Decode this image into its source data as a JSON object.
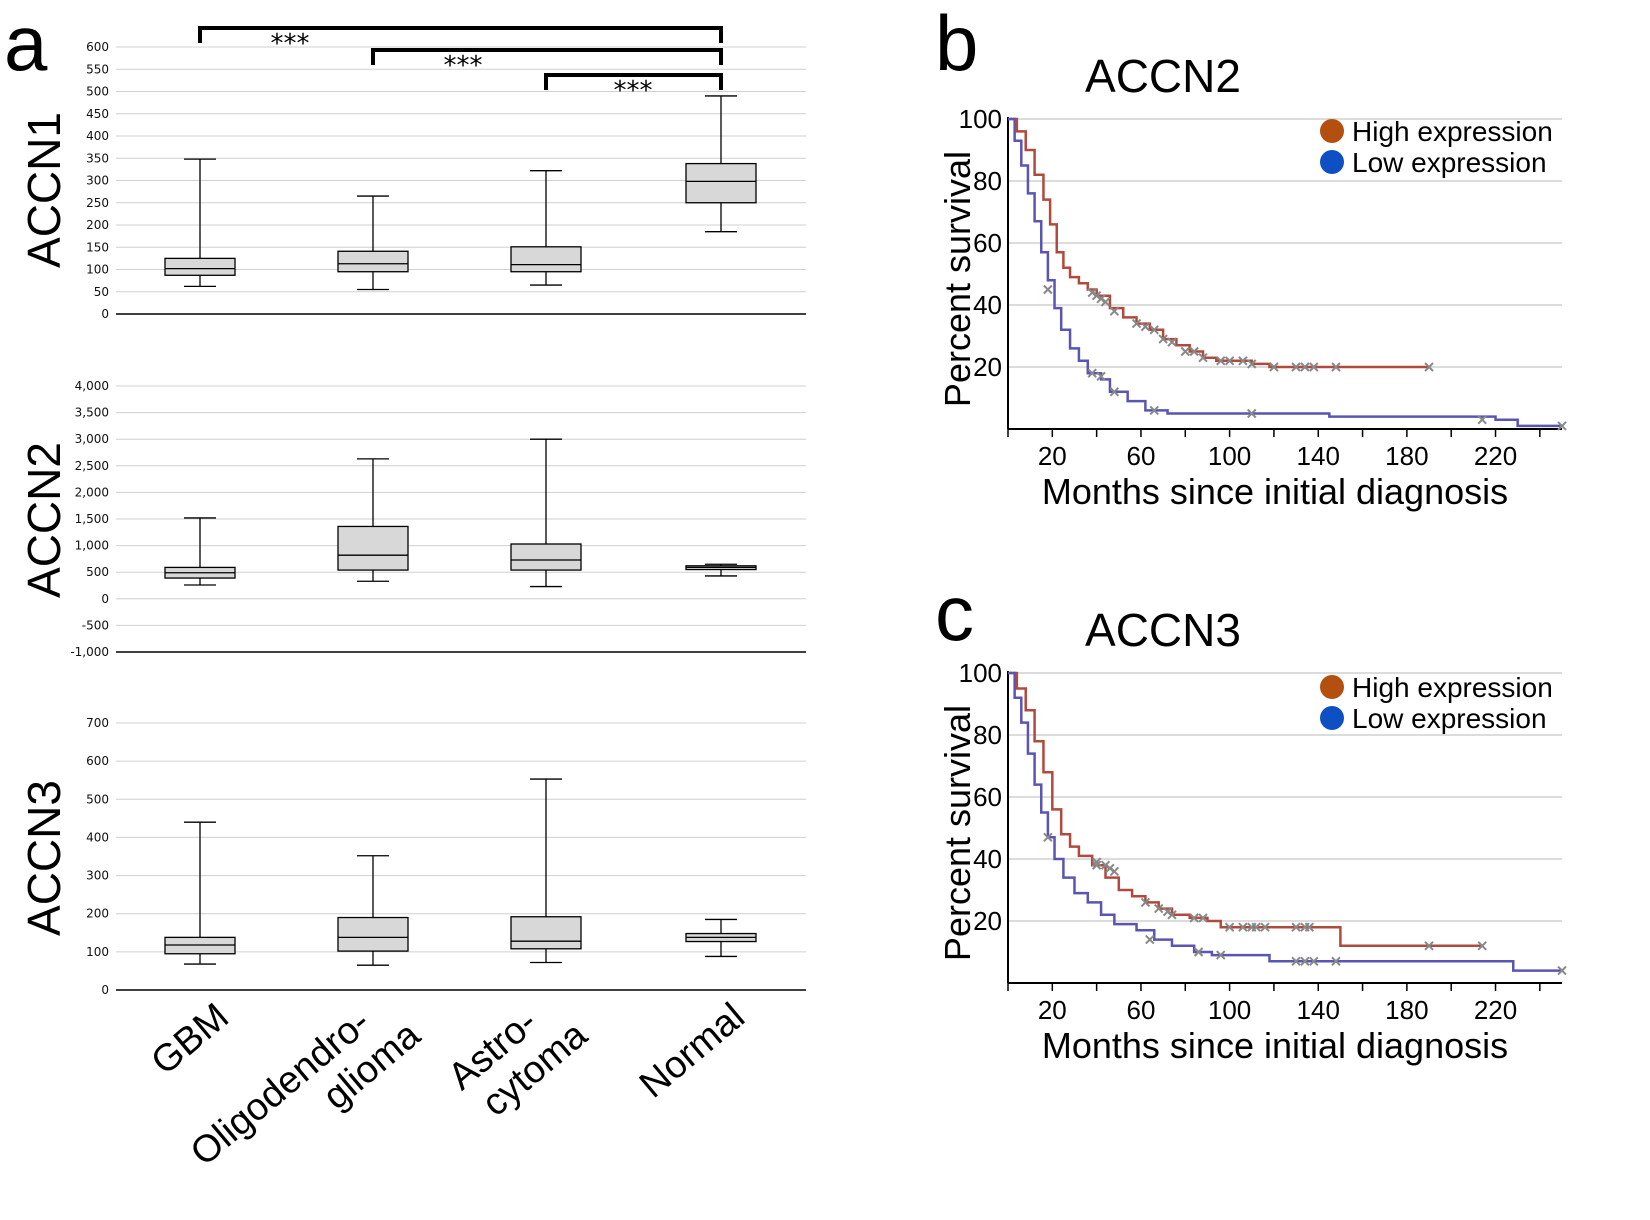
{
  "panels": {
    "a": "a",
    "b": "b",
    "c": "c"
  },
  "colors": {
    "high": "#b04a3c",
    "low": "#5a55b3",
    "legend_high": "#b4500f",
    "legend_low": "#0f4fc4",
    "box": "#d8d8d8",
    "grid": "#d0d0d0",
    "censor": "#888888"
  },
  "chart_data": [
    {
      "type": "box",
      "ylabel": "ACCN1",
      "yticks": [
        "0",
        "50",
        "100",
        "150",
        "200",
        "250",
        "300",
        "350",
        "400",
        "450",
        "500",
        "550",
        "600"
      ],
      "ylim": [
        0,
        600
      ],
      "categories": [
        "GBM",
        "Oligodendroglioma",
        "Astrocytoma",
        "Normal"
      ],
      "boxes": [
        {
          "min": 62,
          "q1": 87,
          "median": 102,
          "q3": 125,
          "max": 348
        },
        {
          "min": 55,
          "q1": 95,
          "median": 113,
          "q3": 141,
          "max": 265
        },
        {
          "min": 65,
          "q1": 95,
          "median": 111,
          "q3": 151,
          "max": 322
        },
        {
          "min": 185,
          "q1": 250,
          "median": 298,
          "q3": 338,
          "max": 490
        }
      ],
      "significance": [
        {
          "from": 0,
          "to": 3,
          "label": "***"
        },
        {
          "from": 1,
          "to": 3,
          "label": "***"
        },
        {
          "from": 2,
          "to": 3,
          "label": "***"
        }
      ]
    },
    {
      "type": "box",
      "ylabel": "ACCN2",
      "yticks": [
        "-1,000",
        "-500",
        "0",
        "500",
        "1,000",
        "1,500",
        "2,000",
        "2,500",
        "3,000",
        "3,500",
        "4,000"
      ],
      "ylim": [
        -1000,
        4000
      ],
      "categories": [
        "GBM",
        "Oligodendroglioma",
        "Astrocytoma",
        "Normal"
      ],
      "boxes": [
        {
          "min": 260,
          "q1": 390,
          "median": 490,
          "q3": 590,
          "max": 1520
        },
        {
          "min": 330,
          "q1": 540,
          "median": 820,
          "q3": 1360,
          "max": 2630
        },
        {
          "min": 230,
          "q1": 540,
          "median": 730,
          "q3": 1030,
          "max": 3000
        },
        {
          "min": 430,
          "q1": 550,
          "median": 590,
          "q3": 620,
          "max": 650
        }
      ]
    },
    {
      "type": "box",
      "ylabel": "ACCN3",
      "yticks": [
        "0",
        "100",
        "200",
        "300",
        "400",
        "500",
        "600",
        "700"
      ],
      "ylim": [
        0,
        700
      ],
      "categories": [
        "GBM",
        "Oligodendroglioma",
        "Astrocytoma",
        "Normal"
      ],
      "category_labels": [
        [
          "GBM"
        ],
        [
          "Oligodendro-",
          "glioma"
        ],
        [
          "Astro-",
          "cytoma"
        ],
        [
          "Normal"
        ]
      ],
      "boxes": [
        {
          "min": 68,
          "q1": 95,
          "median": 118,
          "q3": 138,
          "max": 440
        },
        {
          "min": 65,
          "q1": 102,
          "median": 138,
          "q3": 190,
          "max": 352
        },
        {
          "min": 72,
          "q1": 108,
          "median": 128,
          "q3": 192,
          "max": 553
        },
        {
          "min": 88,
          "q1": 127,
          "median": 138,
          "q3": 148,
          "max": 185
        }
      ]
    },
    {
      "type": "line",
      "subtype": "kaplan-meier",
      "title": "ACCN2",
      "xlabel": "Months since initial diagnosis",
      "ylabel": "Percent survival",
      "xticks": [
        20,
        60,
        100,
        140,
        180,
        220
      ],
      "yticks": [
        20,
        40,
        60,
        80,
        100
      ],
      "xlim": [
        0,
        250
      ],
      "ylim": [
        0,
        100
      ],
      "legend": [
        "High expression",
        "Low expression"
      ],
      "series": [
        {
          "name": "High expression",
          "points": [
            [
              0,
              100
            ],
            [
              4,
              96
            ],
            [
              8,
              90
            ],
            [
              12,
              82
            ],
            [
              16,
              74
            ],
            [
              19,
              66
            ],
            [
              22,
              57
            ],
            [
              25,
              52
            ],
            [
              28,
              49
            ],
            [
              32,
              47
            ],
            [
              36,
              45
            ],
            [
              40,
              43
            ],
            [
              46,
              39
            ],
            [
              52,
              36
            ],
            [
              58,
              34
            ],
            [
              64,
              32
            ],
            [
              70,
              29
            ],
            [
              76,
              27
            ],
            [
              82,
              25
            ],
            [
              88,
              23
            ],
            [
              94,
              22
            ],
            [
              110,
              21
            ],
            [
              118,
              20
            ],
            [
              190,
              20
            ]
          ],
          "censored": [
            [
              38,
              44
            ],
            [
              40,
              43
            ],
            [
              42,
              42
            ],
            [
              44,
              41
            ],
            [
              48,
              38
            ],
            [
              58,
              34
            ],
            [
              62,
              33
            ],
            [
              66,
              32
            ],
            [
              70,
              29
            ],
            [
              74,
              28
            ],
            [
              80,
              25
            ],
            [
              84,
              25
            ],
            [
              88,
              23
            ],
            [
              96,
              22
            ],
            [
              100,
              22
            ],
            [
              106,
              22
            ],
            [
              110,
              21
            ],
            [
              120,
              20
            ],
            [
              130,
              20
            ],
            [
              134,
              20
            ],
            [
              138,
              20
            ],
            [
              148,
              20
            ],
            [
              190,
              20
            ]
          ]
        },
        {
          "name": "Low expression",
          "points": [
            [
              0,
              100
            ],
            [
              3,
              93
            ],
            [
              6,
              85
            ],
            [
              9,
              76
            ],
            [
              12,
              67
            ],
            [
              15,
              57
            ],
            [
              18,
              48
            ],
            [
              21,
              39
            ],
            [
              24,
              32
            ],
            [
              28,
              26
            ],
            [
              32,
              22
            ],
            [
              36,
              18
            ],
            [
              42,
              16
            ],
            [
              46,
              12
            ],
            [
              54,
              9
            ],
            [
              62,
              6
            ],
            [
              72,
              5
            ],
            [
              100,
              5
            ],
            [
              110,
              5
            ],
            [
              145,
              4
            ],
            [
              220,
              3
            ],
            [
              230,
              1
            ],
            [
              250,
              1
            ]
          ],
          "censored": [
            [
              18,
              45
            ],
            [
              38,
              18
            ],
            [
              42,
              17
            ],
            [
              48,
              12
            ],
            [
              66,
              6
            ],
            [
              110,
              5
            ],
            [
              214,
              3
            ],
            [
              250,
              1
            ]
          ]
        }
      ]
    },
    {
      "type": "line",
      "subtype": "kaplan-meier",
      "title": "ACCN3",
      "xlabel": "Months since initial diagnosis",
      "ylabel": "Percent survival",
      "xticks": [
        20,
        60,
        100,
        140,
        180,
        220
      ],
      "yticks": [
        20,
        40,
        60,
        80,
        100
      ],
      "xlim": [
        0,
        250
      ],
      "ylim": [
        0,
        100
      ],
      "legend": [
        "High expression",
        "Low expression"
      ],
      "series": [
        {
          "name": "High expression",
          "points": [
            [
              0,
              100
            ],
            [
              4,
              95
            ],
            [
              8,
              88
            ],
            [
              12,
              78
            ],
            [
              16,
              68
            ],
            [
              20,
              56
            ],
            [
              24,
              48
            ],
            [
              28,
              44
            ],
            [
              32,
              41
            ],
            [
              38,
              38
            ],
            [
              44,
              34
            ],
            [
              50,
              30
            ],
            [
              56,
              28
            ],
            [
              62,
              26
            ],
            [
              68,
              24
            ],
            [
              74,
              22
            ],
            [
              82,
              21
            ],
            [
              90,
              20
            ],
            [
              96,
              18
            ],
            [
              148,
              18
            ],
            [
              150,
              12
            ],
            [
              214,
              12
            ]
          ],
          "censored": [
            [
              40,
              39
            ],
            [
              44,
              38
            ],
            [
              46,
              37
            ],
            [
              48,
              36
            ],
            [
              62,
              26
            ],
            [
              68,
              24
            ],
            [
              72,
              23
            ],
            [
              74,
              22
            ],
            [
              84,
              21
            ],
            [
              88,
              21
            ],
            [
              100,
              18
            ],
            [
              106,
              18
            ],
            [
              110,
              18
            ],
            [
              112,
              18
            ],
            [
              116,
              18
            ],
            [
              130,
              18
            ],
            [
              134,
              18
            ],
            [
              136,
              18
            ],
            [
              190,
              12
            ],
            [
              214,
              12
            ]
          ]
        },
        {
          "name": "Low expression",
          "points": [
            [
              0,
              100
            ],
            [
              3,
              92
            ],
            [
              6,
              84
            ],
            [
              9,
              74
            ],
            [
              12,
              64
            ],
            [
              15,
              55
            ],
            [
              18,
              47
            ],
            [
              21,
              40
            ],
            [
              25,
              34
            ],
            [
              30,
              29
            ],
            [
              36,
              26
            ],
            [
              42,
              22
            ],
            [
              48,
              19
            ],
            [
              58,
              17
            ],
            [
              66,
              14
            ],
            [
              74,
              12
            ],
            [
              84,
              10
            ],
            [
              92,
              9
            ],
            [
              110,
              9
            ],
            [
              118,
              7
            ],
            [
              220,
              7
            ],
            [
              228,
              4
            ],
            [
              250,
              4
            ]
          ],
          "censored": [
            [
              18,
              47
            ],
            [
              40,
              38
            ],
            [
              64,
              14
            ],
            [
              86,
              10
            ],
            [
              96,
              9
            ],
            [
              130,
              7
            ],
            [
              134,
              7
            ],
            [
              138,
              7
            ],
            [
              148,
              7
            ],
            [
              250,
              4
            ]
          ]
        }
      ]
    }
  ]
}
